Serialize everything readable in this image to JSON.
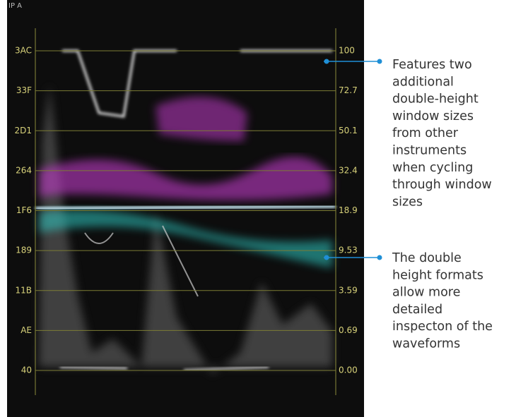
{
  "scope": {
    "channel": "IP A",
    "left_scale": [
      "3AC",
      "33F",
      "2D1",
      "264",
      "1F6",
      "189",
      "11B",
      "AE",
      "40"
    ],
    "right_scale": [
      "100",
      "72.7",
      "50.1",
      "32.4",
      "18.9",
      "9.53",
      "3.59",
      "0.69",
      "0.00"
    ]
  },
  "callouts": [
    {
      "lines": [
        "Features two",
        "additional",
        "double-height",
        "window sizes",
        "from other",
        "instruments",
        "when cycling",
        "through window",
        "sizes"
      ]
    },
    {
      "lines": [
        "The double",
        "height formats",
        "allow more",
        "detailed",
        "inspecton of the",
        "waveforms"
      ]
    }
  ]
}
